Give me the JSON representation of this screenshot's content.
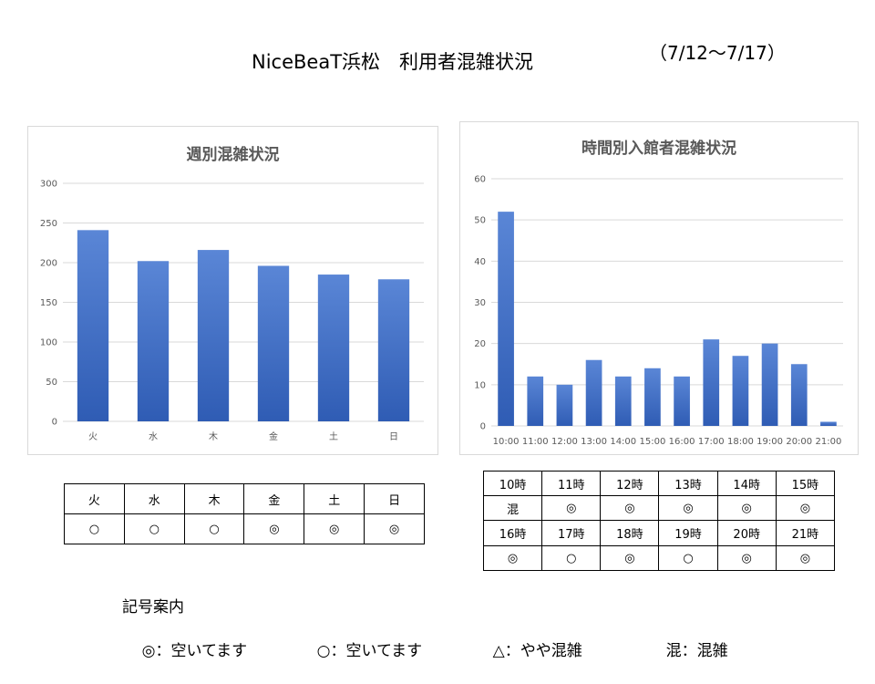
{
  "header": {
    "title": "NiceBeaT浜松　利用者混雑状況",
    "date_range": "（7/12～7/17）"
  },
  "weekly_chart": {
    "title": "週別混雑状況"
  },
  "hourly_chart": {
    "title": "時間別入館者混雑状況"
  },
  "chart_data": [
    {
      "type": "bar",
      "title": "週別混雑状況",
      "categories": [
        "火",
        "水",
        "木",
        "金",
        "土",
        "日"
      ],
      "values": [
        241,
        202,
        216,
        196,
        185,
        179
      ],
      "ylim": [
        0,
        300
      ],
      "yticks": [
        "0",
        "50",
        "100",
        "150",
        "200",
        "250",
        "300"
      ],
      "grid": true,
      "bar_color": "#4472c4"
    },
    {
      "type": "bar",
      "title": "時間別入館者混雑状況",
      "categories": [
        "10:00",
        "11:00",
        "12:00",
        "13:00",
        "14:00",
        "15:00",
        "16:00",
        "17:00",
        "18:00",
        "19:00",
        "20:00",
        "21:00"
      ],
      "values": [
        52,
        12,
        10,
        16,
        12,
        14,
        12,
        21,
        17,
        20,
        15,
        1
      ],
      "ylim": [
        0,
        60
      ],
      "yticks": [
        "0",
        "10",
        "20",
        "30",
        "40",
        "50",
        "60"
      ],
      "grid": true,
      "bar_color": "#4472c4"
    }
  ],
  "weekly_table": {
    "days": [
      "火",
      "水",
      "木",
      "金",
      "土",
      "日"
    ],
    "status": [
      "○",
      "○",
      "○",
      "◎",
      "◎",
      "◎"
    ]
  },
  "hourly_table": {
    "rows": [
      [
        "10時",
        "11時",
        "12時",
        "13時",
        "14時",
        "15時"
      ],
      [
        "混",
        "◎",
        "◎",
        "◎",
        "◎",
        "◎"
      ],
      [
        "16時",
        "17時",
        "18時",
        "19時",
        "20時",
        "21時"
      ],
      [
        "◎",
        "○",
        "◎",
        "○",
        "◎",
        "◎"
      ]
    ]
  },
  "legend": {
    "title": "記号案内",
    "items": [
      "◎：空いてます",
      "○：空いてます",
      "△：やや混雑",
      "混：混雑"
    ]
  }
}
